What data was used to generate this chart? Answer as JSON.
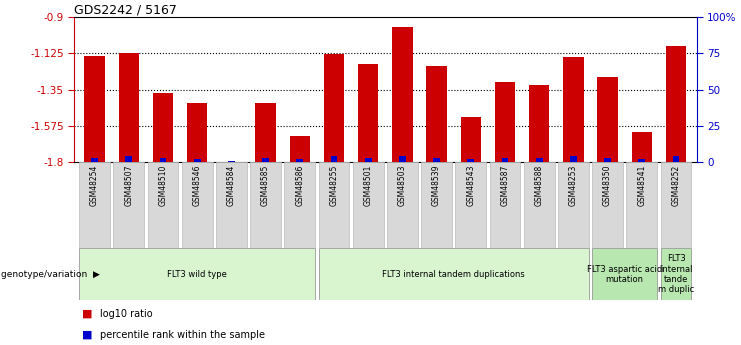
{
  "title": "GDS2242 / 5167",
  "samples": [
    "GSM48254",
    "GSM48507",
    "GSM48510",
    "GSM48546",
    "GSM48584",
    "GSM48585",
    "GSM48586",
    "GSM48255",
    "GSM48501",
    "GSM48503",
    "GSM48539",
    "GSM48543",
    "GSM48587",
    "GSM48588",
    "GSM48253",
    "GSM48350",
    "GSM48541",
    "GSM48252"
  ],
  "log10_ratio": [
    -1.14,
    -1.12,
    -1.37,
    -1.43,
    -1.8,
    -1.43,
    -1.64,
    -1.13,
    -1.19,
    -0.96,
    -1.2,
    -1.52,
    -1.3,
    -1.32,
    -1.15,
    -1.27,
    -1.61,
    -1.08
  ],
  "percentile_rank": [
    3,
    4,
    3,
    2,
    1,
    3,
    2,
    4,
    3,
    4,
    3,
    2,
    3,
    3,
    4,
    3,
    2,
    4
  ],
  "ylim_left": [
    -1.8,
    -0.9
  ],
  "ylim_right": [
    0,
    100
  ],
  "yticks_left": [
    -1.8,
    -1.575,
    -1.35,
    -1.125,
    -0.9
  ],
  "ytick_labels_left": [
    "-1.8",
    "-1.575",
    "-1.35",
    "-1.125",
    "-0.9"
  ],
  "yticks_right": [
    0,
    25,
    50,
    75,
    100
  ],
  "ytick_labels_right": [
    "0",
    "25",
    "50",
    "75",
    "100%"
  ],
  "bar_color": "#cc0000",
  "percentile_color": "#0000cc",
  "groups": [
    {
      "label": "FLT3 wild type",
      "start": 0,
      "end": 7,
      "color": "#d8f5d0"
    },
    {
      "label": "FLT3 internal tandem duplications",
      "start": 7,
      "end": 15,
      "color": "#d8f5d0"
    },
    {
      "label": "FLT3 aspartic acid\nmutation",
      "start": 15,
      "end": 17,
      "color": "#b8e8b0"
    },
    {
      "label": "FLT3\ninternal\ntande\nm duplic",
      "start": 17,
      "end": 18,
      "color": "#b8e8b0"
    }
  ],
  "xlabel_group": "genotype/variation",
  "legend_red_label": "log10 ratio",
  "legend_blue_label": "percentile rank within the sample",
  "grid_yticks": [
    -1.125,
    -1.35,
    -1.575
  ],
  "bar_bottom": -1.8,
  "label_color_left": "#cc0000",
  "label_color_right": "#0000cc"
}
